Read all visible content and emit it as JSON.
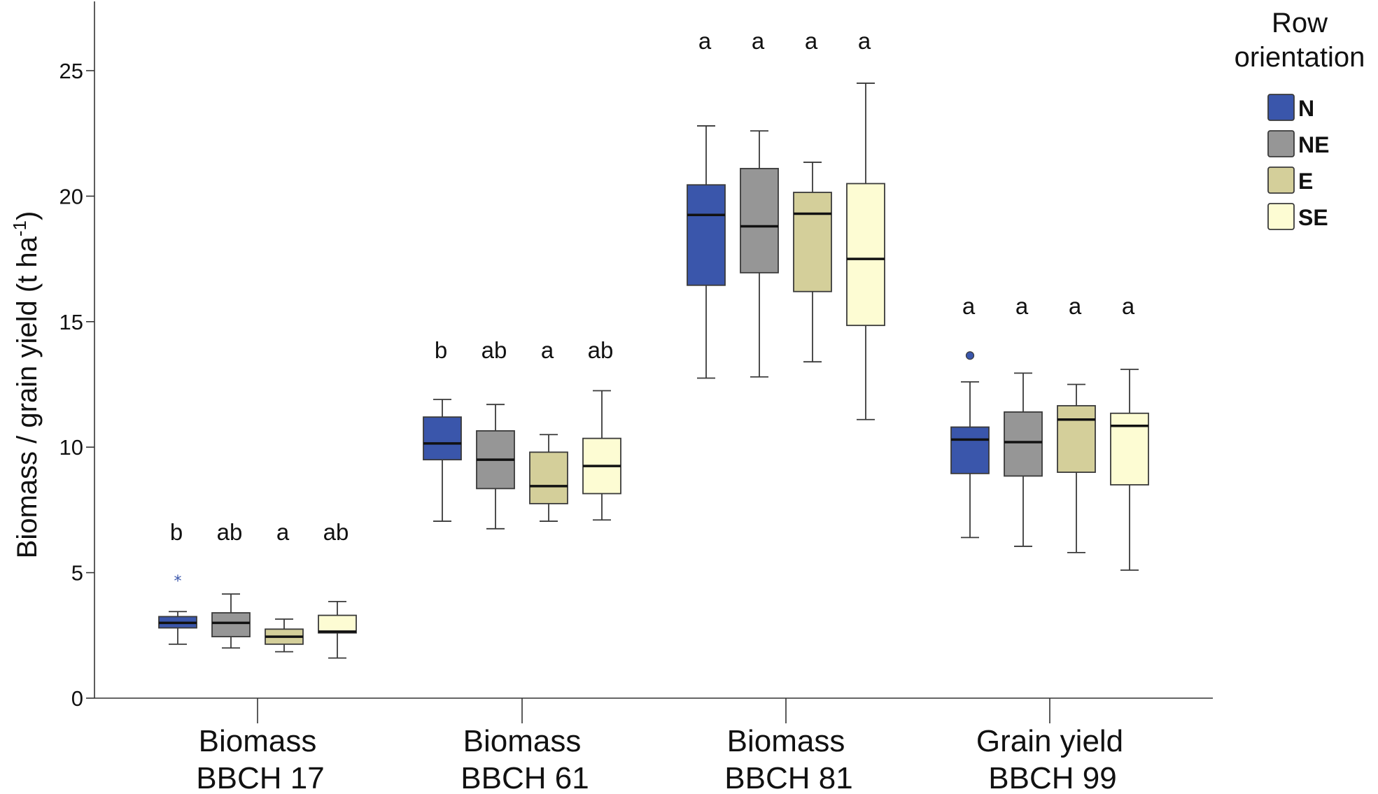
{
  "chart_data": {
    "type": "boxplot",
    "title": "",
    "ylabel": "Biomass / grain yield (t ha",
    "ylabel_sup": "-1",
    "ylabel_close": ")",
    "ylim": [
      0,
      27.5
    ],
    "yticks": [
      0,
      5,
      10,
      15,
      20,
      25
    ],
    "categories": [
      {
        "line1": "Biomass",
        "line2": "BBCH 17"
      },
      {
        "line1": "Biomass",
        "line2": "BBCH 61"
      },
      {
        "line1": "Biomass",
        "line2": "BBCH 81"
      },
      {
        "line1": "Grain yield",
        "line2": "BBCH 99"
      }
    ],
    "legend": {
      "title_line1": "Row",
      "title_line2": "orientation",
      "position": "top-right",
      "entries": [
        {
          "name": "N",
          "color": "#3a56ab"
        },
        {
          "name": "NE",
          "color": "#969696"
        },
        {
          "name": "E",
          "color": "#d4cf9a"
        },
        {
          "name": "SE",
          "color": "#fdfcd3"
        }
      ]
    },
    "groups": [
      {
        "category": "Biomass BBCH 17",
        "boxes": [
          {
            "series": "N",
            "min": 2.15,
            "q1": 2.8,
            "median": 3.0,
            "q3": 3.25,
            "max": 3.45,
            "letter": "b",
            "outliers": [
              {
                "value": 4.8,
                "symbol": "star"
              }
            ]
          },
          {
            "series": "NE",
            "min": 2.0,
            "q1": 2.45,
            "median": 3.0,
            "q3": 3.4,
            "max": 4.15,
            "letter": "ab",
            "outliers": []
          },
          {
            "series": "E",
            "min": 1.85,
            "q1": 2.15,
            "median": 2.45,
            "q3": 2.75,
            "max": 3.15,
            "letter": "a",
            "outliers": []
          },
          {
            "series": "SE",
            "min": 1.6,
            "q1": 2.6,
            "median": 2.65,
            "q3": 3.3,
            "max": 3.85,
            "letter": "ab",
            "outliers": []
          }
        ]
      },
      {
        "category": "Biomass BBCH 61",
        "boxes": [
          {
            "series": "N",
            "min": 7.05,
            "q1": 9.5,
            "median": 10.15,
            "q3": 11.2,
            "max": 11.9,
            "letter": "b",
            "outliers": []
          },
          {
            "series": "NE",
            "min": 6.75,
            "q1": 8.35,
            "median": 9.5,
            "q3": 10.65,
            "max": 11.7,
            "letter": "ab",
            "outliers": []
          },
          {
            "series": "E",
            "min": 7.05,
            "q1": 7.75,
            "median": 8.45,
            "q3": 9.8,
            "max": 10.5,
            "letter": "a",
            "outliers": []
          },
          {
            "series": "SE",
            "min": 7.1,
            "q1": 8.15,
            "median": 9.25,
            "q3": 10.35,
            "max": 12.25,
            "letter": "ab",
            "outliers": []
          }
        ]
      },
      {
        "category": "Biomass BBCH 81",
        "boxes": [
          {
            "series": "N",
            "min": 12.75,
            "q1": 16.45,
            "median": 19.25,
            "q3": 20.45,
            "max": 22.8,
            "letter": "a",
            "outliers": []
          },
          {
            "series": "NE",
            "min": 12.8,
            "q1": 16.95,
            "median": 18.8,
            "q3": 21.1,
            "max": 22.6,
            "letter": "a",
            "outliers": []
          },
          {
            "series": "E",
            "min": 13.4,
            "q1": 16.2,
            "median": 19.3,
            "q3": 20.15,
            "max": 21.35,
            "letter": "a",
            "outliers": []
          },
          {
            "series": "SE",
            "min": 11.1,
            "q1": 14.85,
            "median": 17.5,
            "q3": 20.5,
            "max": 24.5,
            "letter": "a",
            "outliers": []
          }
        ]
      },
      {
        "category": "Grain yield BBCH 99",
        "boxes": [
          {
            "series": "N",
            "min": 6.4,
            "q1": 8.95,
            "median": 10.3,
            "q3": 10.8,
            "max": 12.6,
            "letter": "a",
            "outliers": [
              {
                "value": 13.65,
                "symbol": "circle"
              }
            ]
          },
          {
            "series": "NE",
            "min": 6.05,
            "q1": 8.85,
            "median": 10.2,
            "q3": 11.4,
            "max": 12.95,
            "letter": "a",
            "outliers": []
          },
          {
            "series": "E",
            "min": 5.8,
            "q1": 9.0,
            "median": 11.1,
            "q3": 11.65,
            "max": 12.5,
            "letter": "a",
            "outliers": []
          },
          {
            "series": "SE",
            "min": 5.1,
            "q1": 8.5,
            "median": 10.85,
            "q3": 11.35,
            "max": 13.1,
            "letter": "a",
            "outliers": []
          }
        ]
      }
    ]
  }
}
